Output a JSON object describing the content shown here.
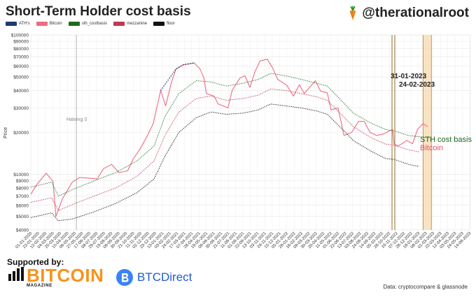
{
  "header": {
    "title": "Short-Term Holder cost basis",
    "brand": "@therationalroot"
  },
  "legend": [
    {
      "label": "ATH's",
      "color": "#1f3a6e"
    },
    {
      "label": "Bitcoin",
      "color": "#f06a83"
    },
    {
      "label": "sth_costbasis",
      "color": "#1e6b1e"
    },
    {
      "label": "mezzanine",
      "color": "#c0394f"
    },
    {
      "label": "floor",
      "color": "#111111"
    }
  ],
  "annotations": {
    "halving": "Halving 3",
    "date1": "31-01-2023",
    "date2": "24-02-2023",
    "sth_label": "STH cost basis",
    "btc_label": "Bitcoin",
    "sth_label_color": "#1e6b1e",
    "btc_label_color": "#e0546b"
  },
  "footer": {
    "supported_by": "Supported by:",
    "bitcoin_logo_word": "BITCOIN",
    "bitcoin_logo_sub": "MAGAZINE",
    "btcdirect_logo": "BTCDirect",
    "source": "Data: cryptocompare & glassnode"
  },
  "chart_data": {
    "type": "line",
    "title": "Short-Term Holder cost basis",
    "xlabel": "",
    "ylabel": "Price",
    "y_scale": "log",
    "ylim": [
      4000,
      100000
    ],
    "y_ticks": [
      4000,
      5000,
      6000,
      7000,
      8000,
      9000,
      10000,
      20000,
      30000,
      40000,
      50000,
      60000,
      70000,
      80000,
      90000,
      100000
    ],
    "y_tick_labels": [
      "$4000",
      "$5000",
      "$6000",
      "$7000",
      "$8000",
      "$9000",
      "$10000",
      "$20000",
      "$30000",
      "$40000",
      "$50000",
      "$60000",
      "$70000",
      "$80000",
      "$90000",
      "$100000"
    ],
    "x_start": "2020-01-01",
    "x_end": "2023-06-16",
    "x_tick_labels": [
      "01-01-2020",
      "22-01-2020",
      "12-02-2020",
      "04-03-2020",
      "25-03-2020",
      "15-04-2020",
      "06-05-2020",
      "27-05-2020",
      "17-06-2020",
      "08-07-2020",
      "29-07-2020",
      "19-08-2020",
      "09-09-2020",
      "30-09-2020",
      "21-10-2020",
      "11-11-2020",
      "02-12-2020",
      "23-12-2020",
      "13-01-2021",
      "03-02-2021",
      "24-02-2021",
      "17-03-2021",
      "07-04-2021",
      "28-04-2021",
      "19-05-2021",
      "09-06-2021",
      "30-06-2021",
      "21-07-2021",
      "11-08-2021",
      "01-09-2021",
      "22-09-2021",
      "13-10-2021",
      "03-11-2021",
      "24-11-2021",
      "15-12-2021",
      "05-01-2022",
      "26-01-2022",
      "16-02-2022",
      "09-03-2022",
      "30-03-2022",
      "20-04-2022",
      "11-05-2022",
      "01-06-2022",
      "22-06-2022",
      "13-07-2022",
      "03-08-2022",
      "24-08-2022",
      "14-09-2022",
      "05-10-2022",
      "26-10-2022",
      "16-11-2022",
      "07-12-2022",
      "28-12-2022",
      "18-01-2023",
      "08-02-2023",
      "01-03-2023",
      "22-03-2023",
      "12-04-2023",
      "03-05-2023",
      "24-05-2023",
      "14-06-2023"
    ],
    "grid": true,
    "vertical_markers": [
      {
        "date": "2020-05-11",
        "label": "Halving 3",
        "color": "#bbbbbb"
      },
      {
        "date": "2022-11-03",
        "label": "",
        "color": "#9a7a3a"
      },
      {
        "date": "2022-11-11",
        "label": "",
        "color": "#9a7a3a"
      }
    ],
    "highlight_range": {
      "from": "2023-01-31",
      "to": "2023-02-24",
      "color": "#f8d9b0"
    },
    "series": [
      {
        "name": "Bitcoin",
        "color": "#f06a83",
        "x": [
          "2020-01-01",
          "2020-01-20",
          "2020-02-14",
          "2020-03-05",
          "2020-03-13",
          "2020-04-01",
          "2020-04-29",
          "2020-05-20",
          "2020-06-15",
          "2020-07-10",
          "2020-07-28",
          "2020-08-20",
          "2020-09-10",
          "2020-10-05",
          "2020-10-21",
          "2020-11-10",
          "2020-12-01",
          "2020-12-17",
          "2021-01-08",
          "2021-01-22",
          "2021-02-08",
          "2021-02-21",
          "2021-03-13",
          "2021-04-14",
          "2021-05-01",
          "2021-05-12",
          "2021-05-19",
          "2021-06-10",
          "2021-06-22",
          "2021-07-20",
          "2021-08-01",
          "2021-08-23",
          "2021-09-07",
          "2021-09-21",
          "2021-10-06",
          "2021-10-20",
          "2021-11-10",
          "2021-11-25",
          "2021-12-10",
          "2022-01-05",
          "2022-01-24",
          "2022-02-10",
          "2022-02-24",
          "2022-03-28",
          "2022-04-12",
          "2022-05-01",
          "2022-05-12",
          "2022-06-01",
          "2022-06-18",
          "2022-07-10",
          "2022-07-30",
          "2022-08-15",
          "2022-09-01",
          "2022-09-20",
          "2022-10-10",
          "2022-10-28",
          "2022-11-05",
          "2022-11-09",
          "2022-11-21",
          "2022-12-15",
          "2023-01-01",
          "2023-01-15",
          "2023-01-31",
          "2023-02-14"
        ],
        "y": [
          7200,
          8600,
          10200,
          8900,
          5000,
          6700,
          8800,
          9500,
          9400,
          9300,
          11000,
          11800,
          10300,
          10600,
          12900,
          15300,
          19000,
          23000,
          40000,
          31000,
          46000,
          57000,
          61000,
          63000,
          57000,
          49000,
          38000,
          36500,
          32000,
          30000,
          40000,
          49000,
          51000,
          42000,
          55000,
          65000,
          67000,
          58000,
          48000,
          43500,
          36500,
          44000,
          38000,
          47000,
          39500,
          38500,
          29000,
          30000,
          19000,
          20000,
          24000,
          24000,
          20000,
          19000,
          19500,
          20600,
          21000,
          16500,
          16000,
          17500,
          16600,
          21000,
          23100,
          22000
        ]
      },
      {
        "name": "sth_costbasis",
        "color": "#1e6b1e",
        "x": [
          "2020-01-01",
          "2020-03-01",
          "2020-03-20",
          "2020-05-01",
          "2020-07-01",
          "2020-09-01",
          "2020-11-01",
          "2020-12-20",
          "2021-01-20",
          "2021-03-01",
          "2021-04-20",
          "2021-06-01",
          "2021-07-15",
          "2021-09-01",
          "2021-10-15",
          "2021-11-20",
          "2022-01-01",
          "2022-02-15",
          "2022-04-01",
          "2022-05-01",
          "2022-06-10",
          "2022-07-15",
          "2022-09-01",
          "2022-10-15",
          "2022-11-10",
          "2022-12-20",
          "2023-02-01",
          "2023-02-24"
        ],
        "y": [
          8100,
          8800,
          7000,
          7800,
          9000,
          10300,
          12500,
          16000,
          26000,
          38000,
          47000,
          46000,
          43000,
          45000,
          48000,
          53000,
          51000,
          48000,
          45000,
          43000,
          34000,
          27500,
          23500,
          21000,
          20500,
          19000,
          18500,
          18300
        ]
      },
      {
        "name": "mezzanine",
        "color": "#c0394f",
        "x": [
          "2020-01-01",
          "2020-03-01",
          "2020-03-20",
          "2020-05-01",
          "2020-07-01",
          "2020-09-01",
          "2020-11-01",
          "2020-12-20",
          "2021-01-20",
          "2021-03-01",
          "2021-04-20",
          "2021-06-01",
          "2021-07-15",
          "2021-09-01",
          "2021-10-15",
          "2021-11-20",
          "2022-01-01",
          "2022-02-15",
          "2022-04-01",
          "2022-05-01",
          "2022-06-10",
          "2022-07-15",
          "2022-09-01",
          "2022-10-15",
          "2022-11-10",
          "2022-12-20",
          "2023-01-20"
        ],
        "y": [
          6300,
          6800,
          5500,
          6100,
          7000,
          8000,
          9700,
          12500,
          19000,
          28000,
          35000,
          36500,
          34000,
          35000,
          37000,
          41000,
          40000,
          38000,
          36000,
          34000,
          27000,
          22000,
          18500,
          16500,
          16200,
          15000,
          14500
        ]
      },
      {
        "name": "floor",
        "color": "#111111",
        "x": [
          "2020-01-01",
          "2020-03-01",
          "2020-03-20",
          "2020-05-01",
          "2020-07-01",
          "2020-09-01",
          "2020-11-01",
          "2020-12-20",
          "2021-01-20",
          "2021-03-01",
          "2021-04-20",
          "2021-06-01",
          "2021-07-15",
          "2021-09-01",
          "2021-10-15",
          "2021-11-20",
          "2022-01-01",
          "2022-02-15",
          "2022-04-01",
          "2022-05-01",
          "2022-06-10",
          "2022-07-15",
          "2022-09-01",
          "2022-10-15",
          "2022-11-10",
          "2022-12-20",
          "2023-01-20"
        ],
        "y": [
          4900,
          5300,
          4650,
          4800,
          5400,
          6200,
          7400,
          9300,
          13500,
          20000,
          25500,
          28000,
          27000,
          27500,
          29000,
          32000,
          31000,
          30000,
          28500,
          27000,
          21500,
          17500,
          14800,
          13000,
          12800,
          11800,
          11400
        ]
      },
      {
        "name": "ATH's",
        "color": "#1f3a6e",
        "x": [
          "2021-01-08",
          "2021-02-21",
          "2021-03-13",
          "2021-04-14"
        ],
        "y": [
          40000,
          57000,
          61000,
          63000
        ]
      }
    ]
  }
}
